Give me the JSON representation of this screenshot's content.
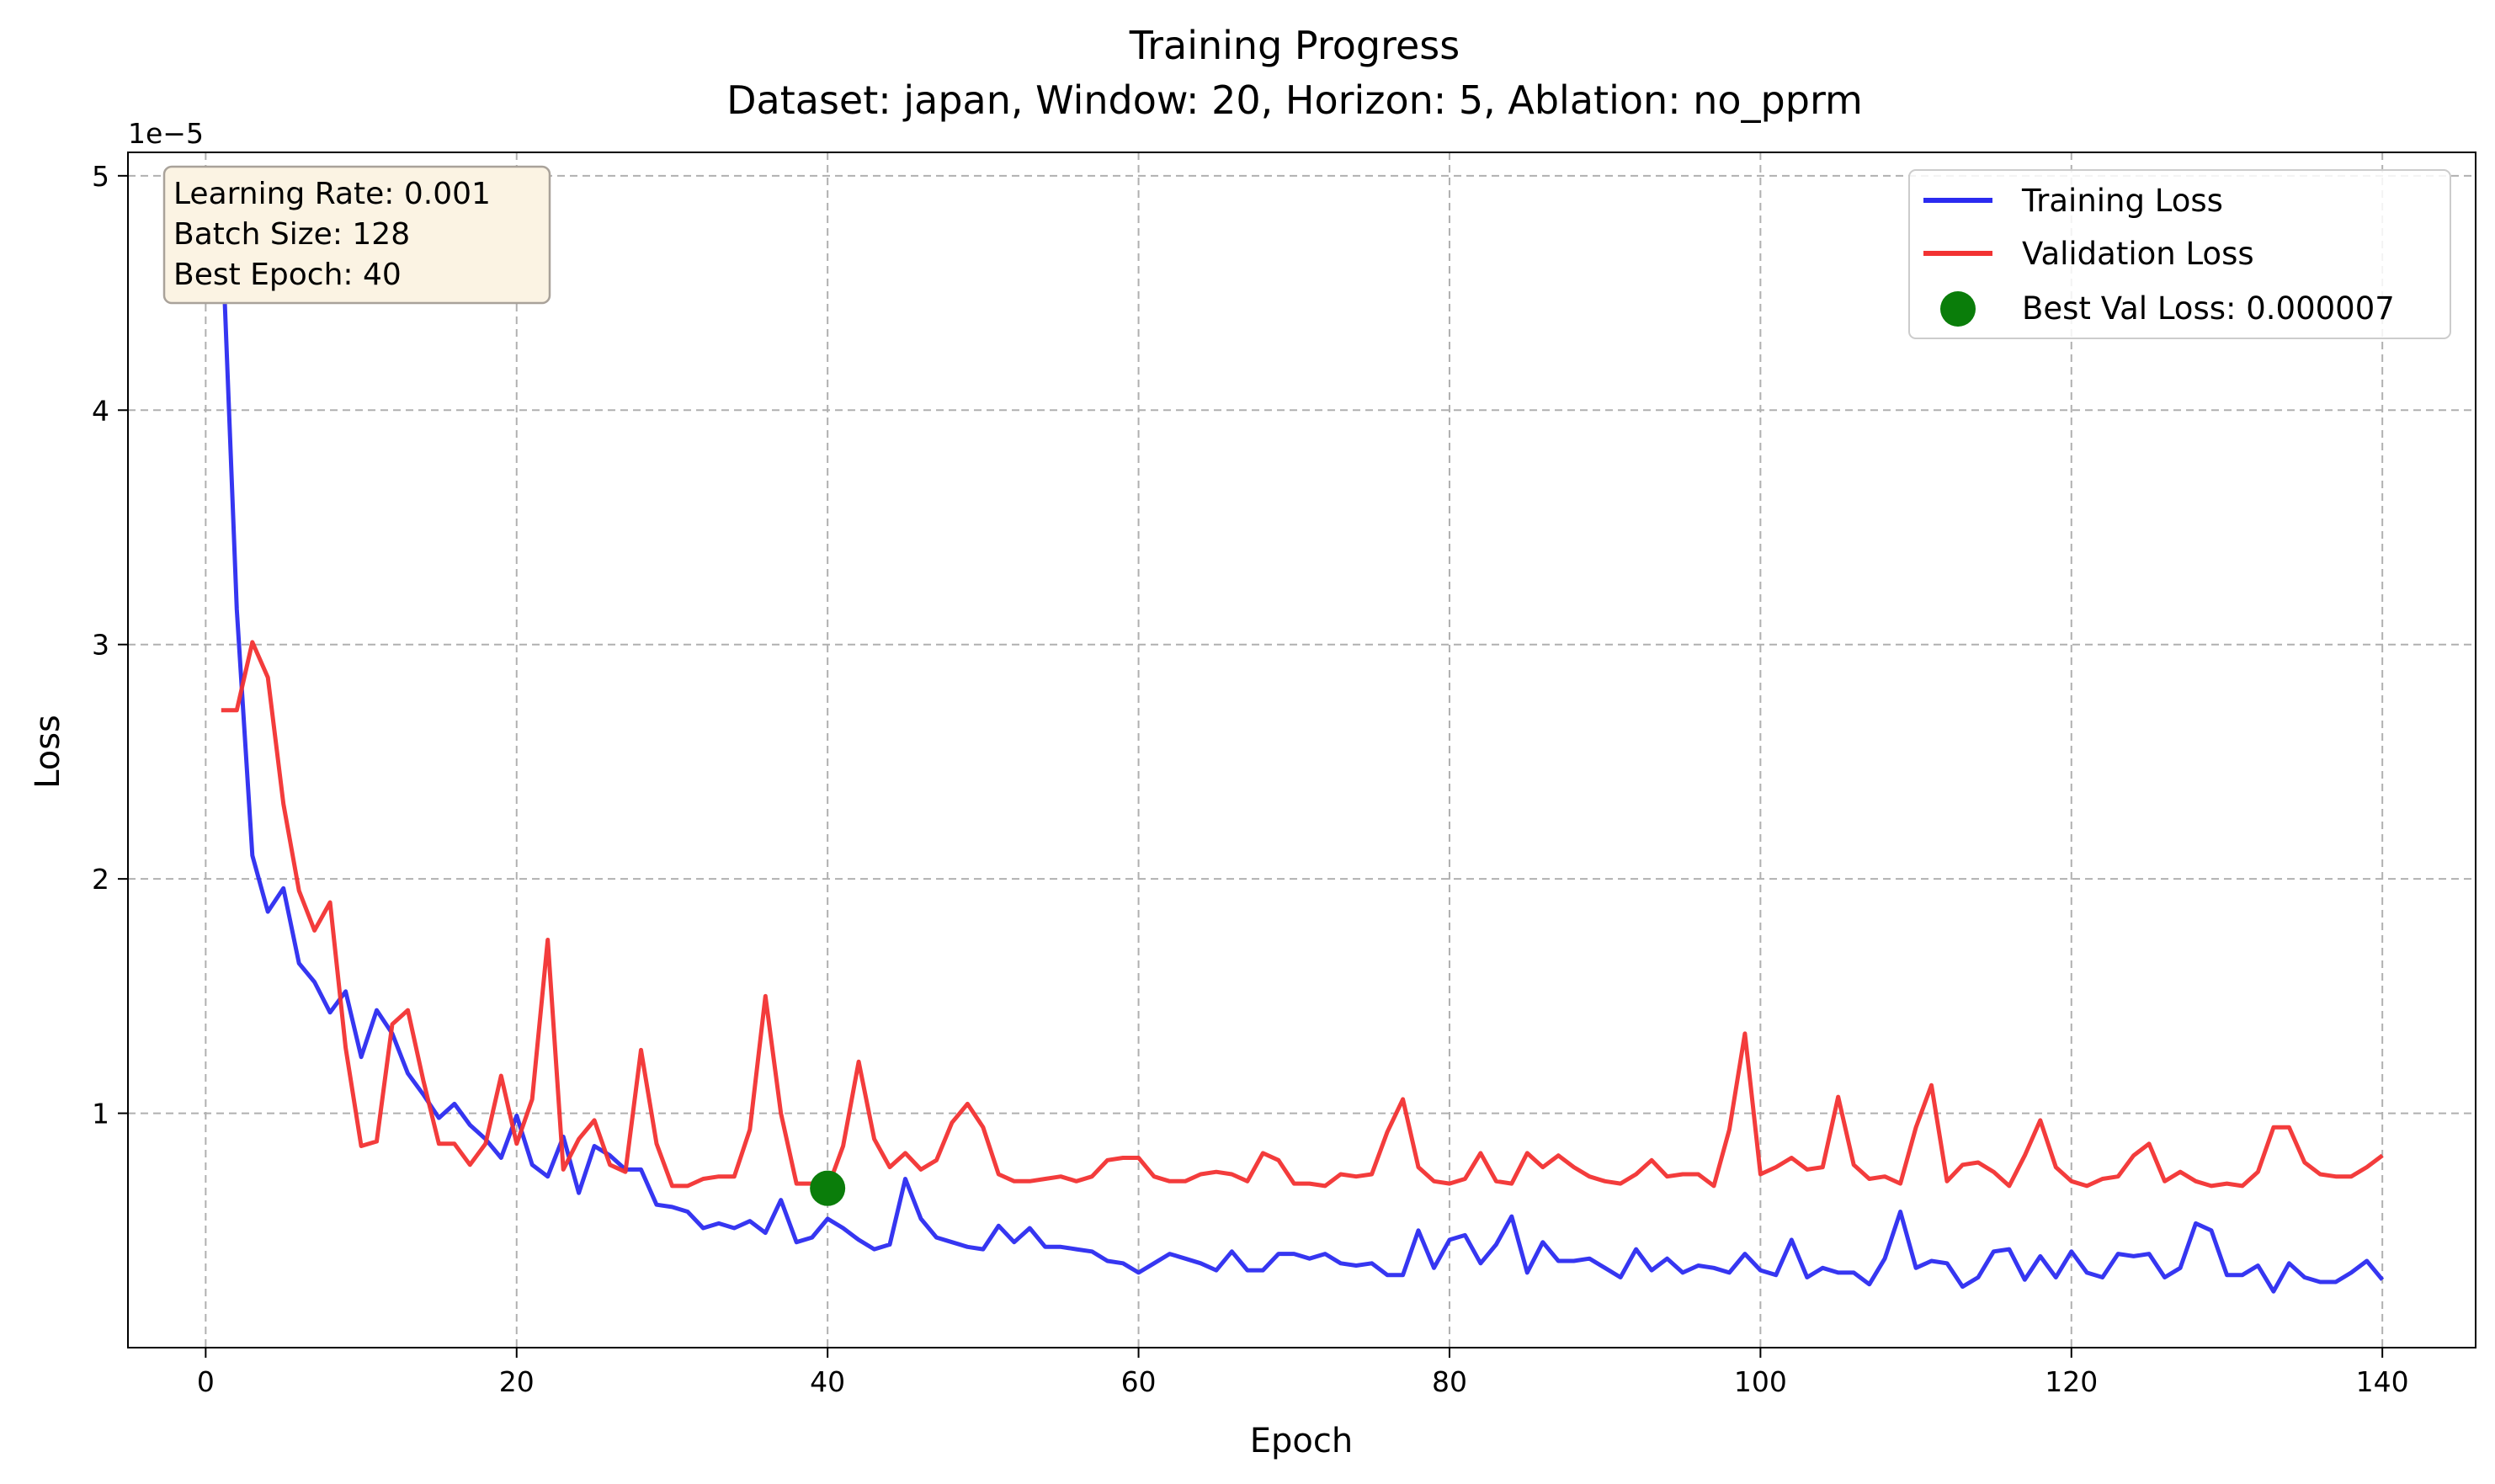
{
  "chart_data": {
    "type": "line",
    "title": "Training Progress",
    "subtitle": "Dataset: japan, Window: 20, Horizon: 5, Ablation: no_pprm",
    "xlabel": "Epoch",
    "ylabel": "Loss",
    "y_scale_label": "1e−5",
    "xlim": [
      -5,
      146
    ],
    "ylim": [
      0.0,
      5.1
    ],
    "x_ticks": [
      0,
      20,
      40,
      60,
      80,
      100,
      120,
      140
    ],
    "y_ticks": [
      1,
      2,
      3,
      4,
      5
    ],
    "grid": true,
    "legend_position": "top-right",
    "colors": {
      "training": "#2b2bf0",
      "validation": "#f23232",
      "best": "#0a7d0a"
    },
    "info_box": [
      "Learning Rate: 0.001",
      "Batch Size: 128",
      "Best Epoch: 40"
    ],
    "x": [
      1,
      2,
      3,
      4,
      5,
      6,
      7,
      8,
      9,
      10,
      11,
      12,
      13,
      14,
      15,
      16,
      17,
      18,
      19,
      20,
      21,
      22,
      23,
      24,
      25,
      26,
      27,
      28,
      29,
      30,
      31,
      32,
      33,
      34,
      35,
      36,
      37,
      38,
      39,
      40,
      41,
      42,
      43,
      44,
      45,
      46,
      47,
      48,
      49,
      50,
      51,
      52,
      53,
      54,
      55,
      56,
      57,
      58,
      59,
      60,
      61,
      62,
      63,
      64,
      65,
      66,
      67,
      68,
      69,
      70,
      71,
      72,
      73,
      74,
      75,
      76,
      77,
      78,
      79,
      80,
      81,
      82,
      83,
      84,
      85,
      86,
      87,
      88,
      89,
      90,
      91,
      92,
      93,
      94,
      95,
      96,
      97,
      98,
      99,
      100,
      101,
      102,
      103,
      104,
      105,
      106,
      107,
      108,
      109,
      110,
      111,
      112,
      113,
      114,
      115,
      116,
      117,
      118,
      119,
      120,
      121,
      122,
      123,
      124,
      125,
      126,
      127,
      128,
      129,
      130,
      131,
      132,
      133,
      134,
      135,
      136,
      137,
      138,
      139,
      140
    ],
    "series": [
      {
        "name": "Training Loss",
        "values": [
          4.85,
          3.15,
          2.1,
          1.86,
          1.96,
          1.64,
          1.56,
          1.43,
          1.52,
          1.24,
          1.44,
          1.34,
          1.17,
          1.08,
          0.98,
          1.04,
          0.95,
          0.89,
          0.81,
          0.99,
          0.78,
          0.73,
          0.9,
          0.66,
          0.86,
          0.82,
          0.76,
          0.76,
          0.61,
          0.6,
          0.58,
          0.51,
          0.53,
          0.51,
          0.54,
          0.49,
          0.63,
          0.45,
          0.47,
          0.55,
          0.51,
          0.46,
          0.42,
          0.44,
          0.72,
          0.55,
          0.47,
          0.45,
          0.43,
          0.42,
          0.52,
          0.45,
          0.51,
          0.43,
          0.43,
          0.42,
          0.41,
          0.37,
          0.36,
          0.32,
          0.36,
          0.4,
          0.38,
          0.36,
          0.33,
          0.41,
          0.33,
          0.33,
          0.4,
          0.4,
          0.38,
          0.4,
          0.36,
          0.35,
          0.36,
          0.31,
          0.31,
          0.5,
          0.34,
          0.46,
          0.48,
          0.36,
          0.44,
          0.56,
          0.32,
          0.45,
          0.37,
          0.37,
          0.38,
          0.34,
          0.3,
          0.42,
          0.33,
          0.38,
          0.32,
          0.35,
          0.34,
          0.32,
          0.4,
          0.33,
          0.31,
          0.46,
          0.3,
          0.34,
          0.32,
          0.32,
          0.27,
          0.38,
          0.58,
          0.34,
          0.37,
          0.36,
          0.26,
          0.3,
          0.41,
          0.42,
          0.29,
          0.39,
          0.3,
          0.41,
          0.32,
          0.3,
          0.4,
          0.39,
          0.4,
          0.3,
          0.34,
          0.53,
          0.5,
          0.31,
          0.31,
          0.35,
          0.24,
          0.36,
          0.3,
          0.28,
          0.28,
          0.32,
          0.37,
          0.29
        ]
      },
      {
        "name": "Validation Loss",
        "values": [
          2.72,
          2.72,
          3.01,
          2.86,
          2.32,
          1.95,
          1.78,
          1.9,
          1.28,
          0.86,
          0.88,
          1.38,
          1.44,
          1.14,
          0.87,
          0.87,
          0.78,
          0.87,
          1.16,
          0.87,
          1.06,
          1.74,
          0.76,
          0.89,
          0.97,
          0.78,
          0.75,
          1.27,
          0.87,
          0.69,
          0.69,
          0.72,
          0.73,
          0.73,
          0.93,
          1.5,
          1.0,
          0.7,
          0.7,
          0.68,
          0.86,
          1.22,
          0.89,
          0.77,
          0.83,
          0.76,
          0.8,
          0.96,
          1.04,
          0.94,
          0.74,
          0.71,
          0.71,
          0.72,
          0.73,
          0.71,
          0.73,
          0.8,
          0.81,
          0.81,
          0.73,
          0.71,
          0.71,
          0.74,
          0.75,
          0.74,
          0.71,
          0.83,
          0.8,
          0.7,
          0.7,
          0.69,
          0.74,
          0.73,
          0.74,
          0.92,
          1.06,
          0.77,
          0.71,
          0.7,
          0.72,
          0.83,
          0.71,
          0.7,
          0.83,
          0.77,
          0.82,
          0.77,
          0.73,
          0.71,
          0.7,
          0.74,
          0.8,
          0.73,
          0.74,
          0.74,
          0.69,
          0.93,
          1.34,
          0.74,
          0.77,
          0.81,
          0.76,
          0.77,
          1.07,
          0.78,
          0.72,
          0.73,
          0.7,
          0.94,
          1.12,
          0.71,
          0.78,
          0.79,
          0.75,
          0.69,
          0.82,
          0.97,
          0.77,
          0.71,
          0.69,
          0.72,
          0.73,
          0.82,
          0.87,
          0.71,
          0.75,
          0.71,
          0.69,
          0.7,
          0.69,
          0.75,
          0.94,
          0.94,
          0.79,
          0.74,
          0.73,
          0.73,
          0.77,
          0.82
        ]
      }
    ],
    "best": {
      "label": "Best Val Loss: 0.000007",
      "x": 40,
      "y": 0.68
    }
  }
}
